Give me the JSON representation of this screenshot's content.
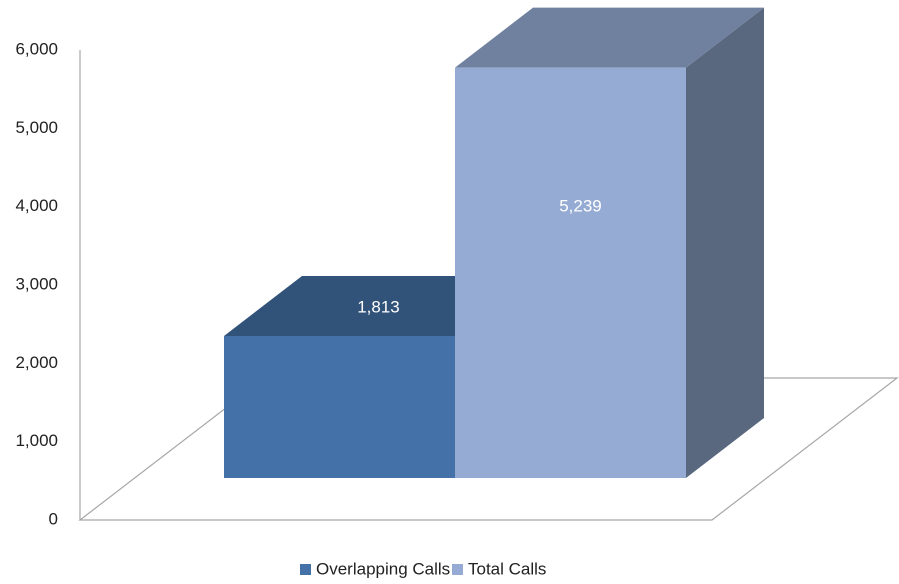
{
  "chart_data": {
    "type": "bar3d",
    "categories": [
      null
    ],
    "series": [
      {
        "name": "Overlapping Calls",
        "color": "#4472a8",
        "values": [
          1813
        ],
        "value_labels": [
          "1,813"
        ]
      },
      {
        "name": "Total Calls",
        "color": "#95abd4",
        "values": [
          5239
        ],
        "value_labels": [
          "5,239"
        ]
      }
    ],
    "ylim": [
      0,
      6000
    ],
    "yticks": [
      0,
      {
        "value": 1000,
        "label": "1,000"
      },
      {
        "value": 2000,
        "label": "2,000"
      },
      {
        "value": 3000,
        "label": "3,000"
      },
      {
        "value": 4000,
        "label": "4,000"
      },
      {
        "value": 5000,
        "label": "5,000"
      },
      {
        "value": 6000,
        "label": "6,000"
      }
    ],
    "grid": false,
    "legend": "bottom"
  }
}
